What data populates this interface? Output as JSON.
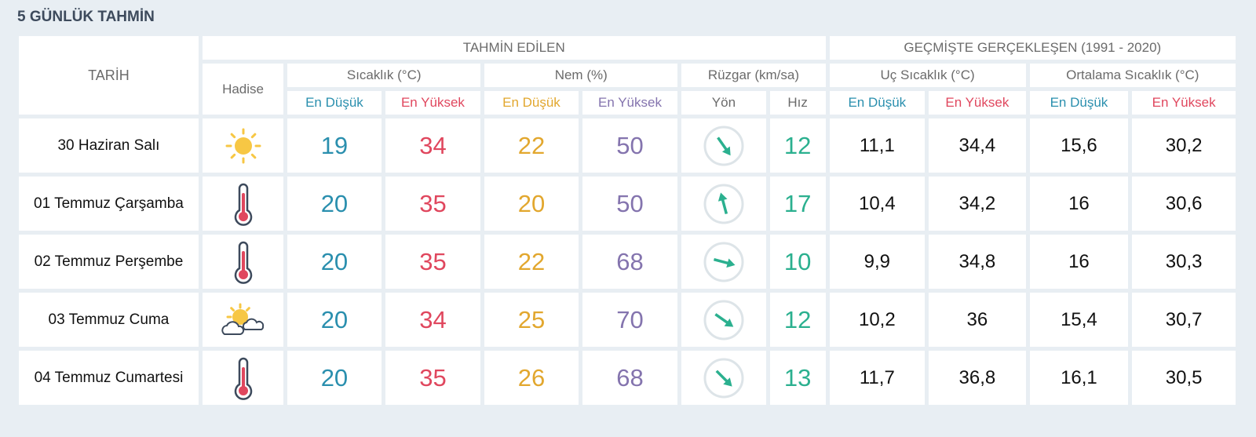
{
  "header": {
    "title": "5 GÜNLÜK TAHMİN"
  },
  "table": {
    "header": {
      "date": "TARİH",
      "forecast": "TAHMİN EDİLEN",
      "history": "GEÇMİŞTE GERÇEKLEŞEN (1991 - 2020)",
      "event": "Hadise",
      "temperature": "Sıcaklık (°C)",
      "humidity": "Nem (%)",
      "wind": "Rüzgar (km/sa)",
      "extreme": "Uç Sıcaklık (°C)",
      "average": "Ortalama Sıcaklık (°C)",
      "sub": [
        "En Düşük",
        "En Yüksek",
        "En Düşük",
        "En Yüksek",
        "Yön",
        "Hız",
        "En Düşük",
        "En Yüksek",
        "En Düşük",
        "En Yüksek"
      ]
    },
    "rows": [
      [
        "30 Haziran Salı",
        "19",
        "34",
        "22",
        "50",
        "12",
        "11,1",
        "34,4",
        "15,6",
        "30,2"
      ],
      [
        "01 Temmuz Çarşamba",
        "20",
        "35",
        "20",
        "50",
        "17",
        "10,4",
        "34,2",
        "16",
        "30,6"
      ],
      [
        "02 Temmuz Perşembe",
        "20",
        "35",
        "22",
        "68",
        "10",
        "9,9",
        "34,8",
        "16",
        "30,3"
      ],
      [
        "03 Temmuz Cuma",
        "20",
        "34",
        "25",
        "70",
        "12",
        "10,2",
        "36",
        "15,4",
        "30,7"
      ],
      [
        "04 Temmuz Cumartesi",
        "20",
        "35",
        "26",
        "68",
        "13",
        "11,7",
        "36,8",
        "16,1",
        "30,5"
      ]
    ]
  }
}
